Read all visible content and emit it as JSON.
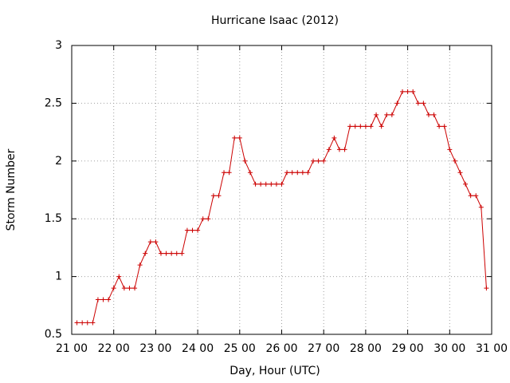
{
  "chart_data": {
    "type": "line",
    "title": "Hurricane Isaac (2012)",
    "xlabel": "Day, Hour (UTC)",
    "ylabel": "Storm Number",
    "x": [
      21.125,
      21.25,
      21.375,
      21.5,
      21.625,
      21.75,
      21.875,
      22,
      22.125,
      22.25,
      22.375,
      22.5,
      22.625,
      22.75,
      22.875,
      23,
      23.125,
      23.25,
      23.375,
      23.5,
      23.625,
      23.75,
      23.875,
      24,
      24.125,
      24.25,
      24.375,
      24.5,
      24.625,
      24.75,
      24.875,
      25,
      25.125,
      25.25,
      25.375,
      25.5,
      25.625,
      25.75,
      25.875,
      26,
      26.125,
      26.25,
      26.375,
      26.5,
      26.625,
      26.75,
      26.875,
      27,
      27.125,
      27.25,
      27.375,
      27.5,
      27.625,
      27.75,
      27.875,
      28,
      28.125,
      28.25,
      28.375,
      28.5,
      28.625,
      28.75,
      28.875,
      29,
      29.125,
      29.25,
      29.375,
      29.5,
      29.625,
      29.75,
      29.875,
      30,
      30.125,
      30.25,
      30.375,
      30.5,
      30.625,
      30.75,
      30.875
    ],
    "series": [
      {
        "name": "Storm Number",
        "color": "#cc0000",
        "values": [
          0.6,
          0.6,
          0.6,
          0.6,
          0.8,
          0.8,
          0.8,
          0.9,
          1.0,
          0.9,
          0.9,
          0.9,
          1.1,
          1.2,
          1.3,
          1.3,
          1.2,
          1.2,
          1.2,
          1.2,
          1.2,
          1.4,
          1.4,
          1.4,
          1.5,
          1.5,
          1.7,
          1.7,
          1.9,
          1.9,
          2.2,
          2.2,
          2.0,
          1.9,
          1.8,
          1.8,
          1.8,
          1.8,
          1.8,
          1.8,
          1.9,
          1.9,
          1.9,
          1.9,
          1.9,
          2.0,
          2.0,
          2.0,
          2.1,
          2.2,
          2.1,
          2.1,
          2.3,
          2.3,
          2.3,
          2.3,
          2.3,
          2.4,
          2.3,
          2.4,
          2.4,
          2.5,
          2.6,
          2.6,
          2.6,
          2.5,
          2.5,
          2.4,
          2.4,
          2.3,
          2.3,
          2.1,
          2.0,
          1.9,
          1.8,
          1.7,
          1.7,
          1.6,
          0.9
        ]
      }
    ],
    "xlim": [
      21,
      31
    ],
    "xticks": [
      {
        "value": 21,
        "label": "21 00"
      },
      {
        "value": 22,
        "label": "22 00"
      },
      {
        "value": 23,
        "label": "23 00"
      },
      {
        "value": 24,
        "label": "24 00"
      },
      {
        "value": 25,
        "label": "25 00"
      },
      {
        "value": 26,
        "label": "26 00"
      },
      {
        "value": 27,
        "label": "27 00"
      },
      {
        "value": 28,
        "label": "28 00"
      },
      {
        "value": 29,
        "label": "29 00"
      },
      {
        "value": 30,
        "label": "30 00"
      },
      {
        "value": 31,
        "label": "31 00"
      }
    ],
    "ylim": [
      0.5,
      3
    ],
    "yticks": [
      0.5,
      1,
      1.5,
      2,
      2.5,
      3
    ],
    "grid": true
  }
}
